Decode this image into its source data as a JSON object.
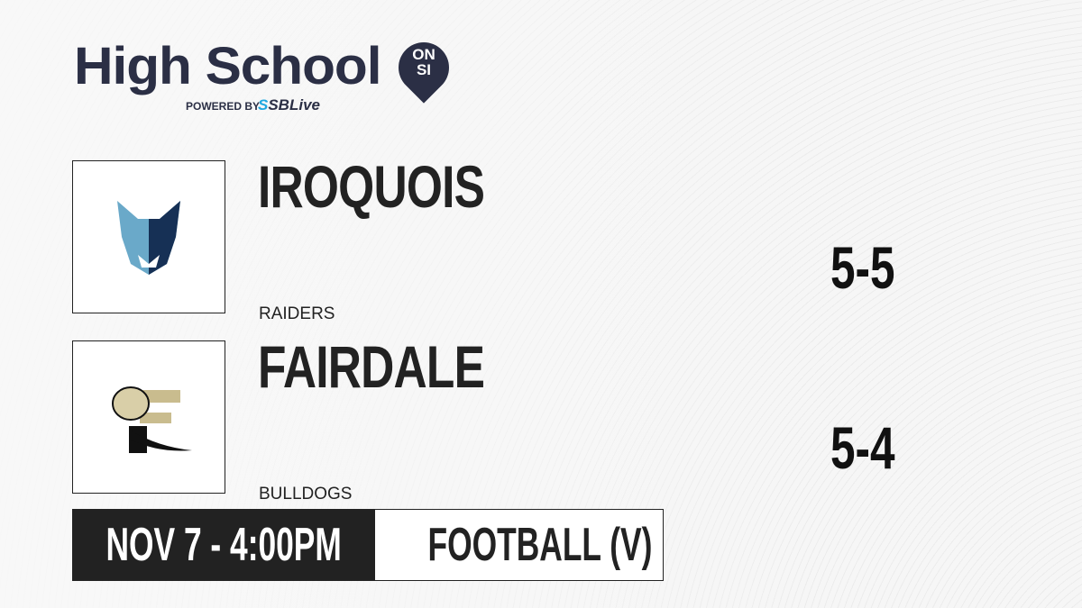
{
  "brand": {
    "title": "High School",
    "badge_top": "ON",
    "badge_bottom": "SI",
    "powered_by": "POWERED BY",
    "partner_prefix": "S",
    "partner": "SBLive"
  },
  "teams": [
    {
      "name": "IROQUOIS",
      "mascot": "RAIDERS",
      "record": "5-5",
      "logo_icon": "wolf-logo-icon"
    },
    {
      "name": "FAIRDALE",
      "mascot": "BULLDOGS",
      "record": "5-4",
      "logo_icon": "bulldog-f-logo-icon"
    }
  ],
  "game": {
    "datetime": "NOV 7 - 4:00PM",
    "sport": "FOOTBALL (V)"
  },
  "colors": {
    "brand": "#2b2f45",
    "accent": "#1fa8e0",
    "dark": "#222222"
  }
}
